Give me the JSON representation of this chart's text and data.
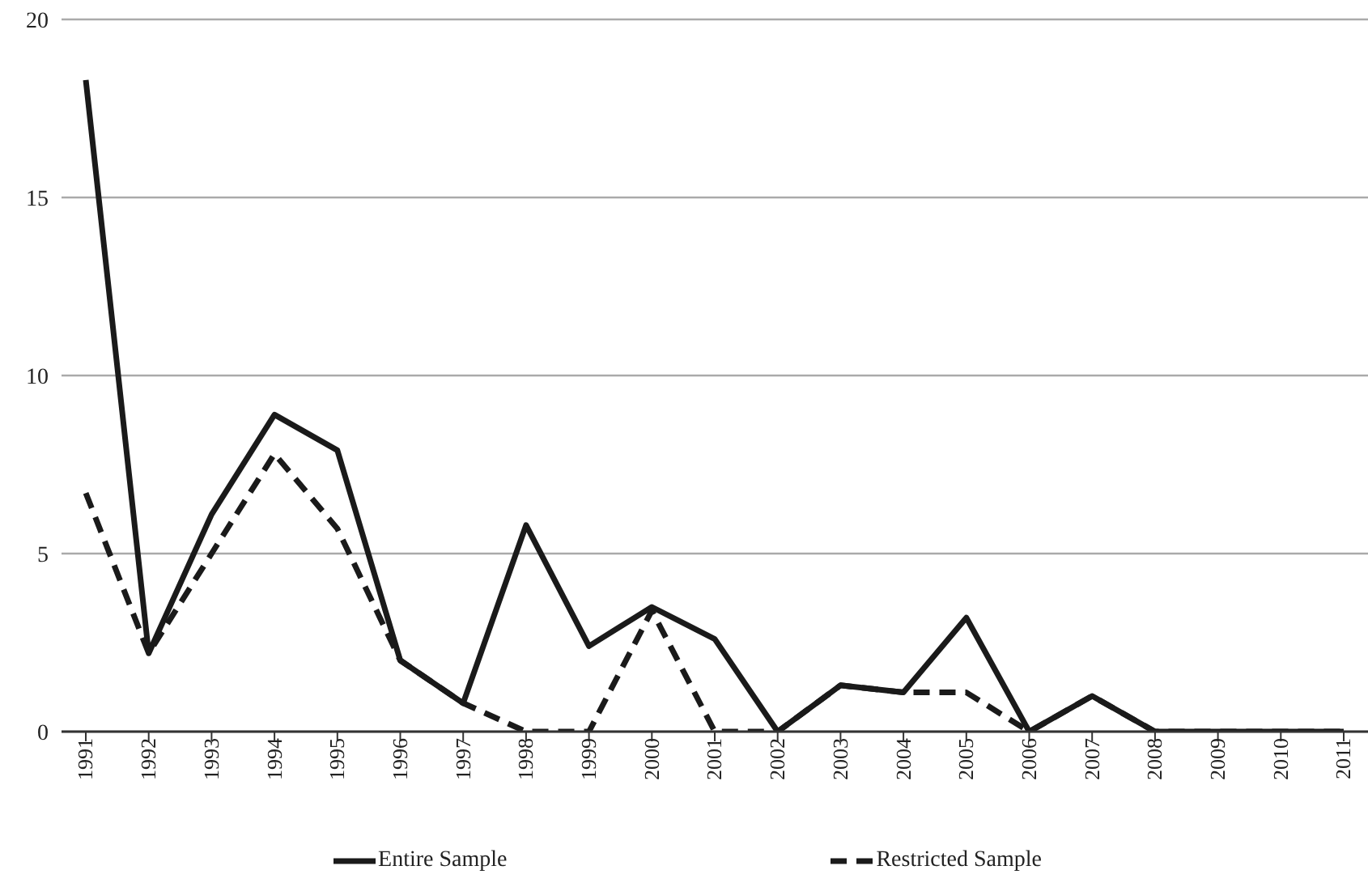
{
  "chart_data": {
    "type": "line",
    "categories": [
      "1991",
      "1992",
      "1993",
      "1994",
      "1995",
      "1996",
      "1997",
      "1998",
      "1999",
      "2000",
      "2001",
      "2002",
      "2003",
      "2004",
      "2005",
      "2006",
      "2007",
      "2008",
      "2009",
      "2010",
      "2011"
    ],
    "series": [
      {
        "name": "Entire Sample",
        "color": "#1a1a1a",
        "line_style": "solid",
        "values": [
          18.3,
          2.2,
          6.1,
          8.9,
          7.9,
          2.0,
          0.8,
          5.8,
          2.4,
          3.5,
          2.6,
          0,
          1.3,
          1.1,
          3.2,
          0,
          1.0,
          0,
          0,
          0,
          0
        ]
      },
      {
        "name": "Restricted Sample",
        "color": "#1a1a1a",
        "line_style": "dashed",
        "values": [
          6.7,
          2.2,
          5.0,
          7.8,
          5.7,
          2.0,
          0.8,
          0,
          0,
          3.4,
          0,
          0,
          1.3,
          1.1,
          1.1,
          0,
          1.0,
          0,
          0,
          0,
          0
        ]
      }
    ],
    "ylim": [
      0,
      20
    ],
    "yticks": [
      0,
      5,
      10,
      15,
      20
    ],
    "grid": "y",
    "legend": "bottom",
    "marker": "none"
  }
}
